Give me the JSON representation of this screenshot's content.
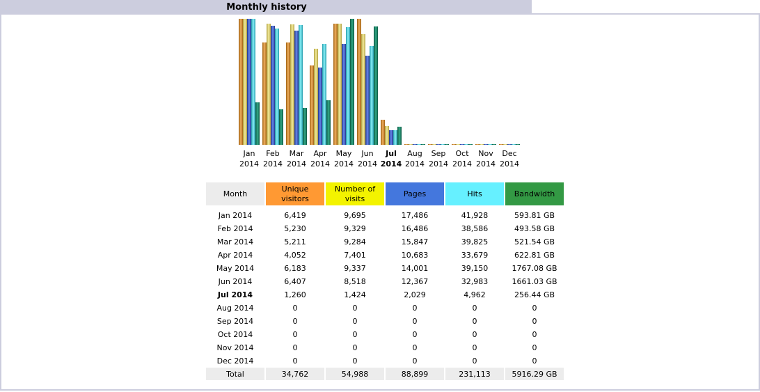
{
  "title": "Monthly history",
  "colors": {
    "unique": "#e8a040",
    "visits": "#e8d878",
    "pages": "#4466cc",
    "hits": "#44ccdd",
    "bandwidth": "#118866"
  },
  "chart_data": {
    "type": "bar",
    "categories": [
      "Jan 2014",
      "Feb 2014",
      "Mar 2014",
      "Apr 2014",
      "May 2014",
      "Jun 2014",
      "Jul 2014",
      "Aug 2014",
      "Sep 2014",
      "Oct 2014",
      "Nov 2014",
      "Dec 2014"
    ],
    "month_top": [
      "Jan",
      "Feb",
      "Mar",
      "Apr",
      "May",
      "Jun",
      "Jul",
      "Aug",
      "Sep",
      "Oct",
      "Nov",
      "Dec"
    ],
    "month_bottom": [
      "2014",
      "2014",
      "2014",
      "2014",
      "2014",
      "2014",
      "2014",
      "2014",
      "2014",
      "2014",
      "2014",
      "2014"
    ],
    "current_month_index": 6,
    "series": [
      {
        "name": "Unique visitors",
        "values": [
          6419,
          5230,
          5211,
          4052,
          6183,
          6407,
          1260,
          0,
          0,
          0,
          0,
          0
        ]
      },
      {
        "name": "Number of visits",
        "values": [
          9695,
          9329,
          9284,
          7401,
          9337,
          8518,
          1424,
          0,
          0,
          0,
          0,
          0
        ]
      },
      {
        "name": "Pages",
        "values": [
          17486,
          16486,
          15847,
          10683,
          14001,
          12367,
          2029,
          0,
          0,
          0,
          0,
          0
        ]
      },
      {
        "name": "Hits",
        "values": [
          41928,
          38586,
          39825,
          33679,
          39150,
          32983,
          4962,
          0,
          0,
          0,
          0,
          0
        ]
      },
      {
        "name": "Bandwidth",
        "values": [
          593.81,
          493.58,
          521.54,
          622.81,
          1767.08,
          1661.03,
          256.44,
          0,
          0,
          0,
          0,
          0
        ]
      }
    ]
  },
  "table": {
    "headers": {
      "month": "Month",
      "unique": "Unique visitors",
      "visits": "Number of visits",
      "pages": "Pages",
      "hits": "Hits",
      "bandwidth": "Bandwidth"
    },
    "rows": [
      [
        "Jan 2014",
        "6,419",
        "9,695",
        "17,486",
        "41,928",
        "593.81 GB"
      ],
      [
        "Feb 2014",
        "5,230",
        "9,329",
        "16,486",
        "38,586",
        "493.58 GB"
      ],
      [
        "Mar 2014",
        "5,211",
        "9,284",
        "15,847",
        "39,825",
        "521.54 GB"
      ],
      [
        "Apr 2014",
        "4,052",
        "7,401",
        "10,683",
        "33,679",
        "622.81 GB"
      ],
      [
        "May 2014",
        "6,183",
        "9,337",
        "14,001",
        "39,150",
        "1767.08 GB"
      ],
      [
        "Jun 2014",
        "6,407",
        "8,518",
        "12,367",
        "32,983",
        "1661.03 GB"
      ],
      [
        "Jul 2014",
        "1,260",
        "1,424",
        "2,029",
        "4,962",
        "256.44 GB"
      ],
      [
        "Aug 2014",
        "0",
        "0",
        "0",
        "0",
        "0"
      ],
      [
        "Sep 2014",
        "0",
        "0",
        "0",
        "0",
        "0"
      ],
      [
        "Oct 2014",
        "0",
        "0",
        "0",
        "0",
        "0"
      ],
      [
        "Nov 2014",
        "0",
        "0",
        "0",
        "0",
        "0"
      ],
      [
        "Dec 2014",
        "0",
        "0",
        "0",
        "0",
        "0"
      ]
    ],
    "total": [
      "Total",
      "34,762",
      "54,988",
      "88,899",
      "231,113",
      "5916.29 GB"
    ]
  }
}
